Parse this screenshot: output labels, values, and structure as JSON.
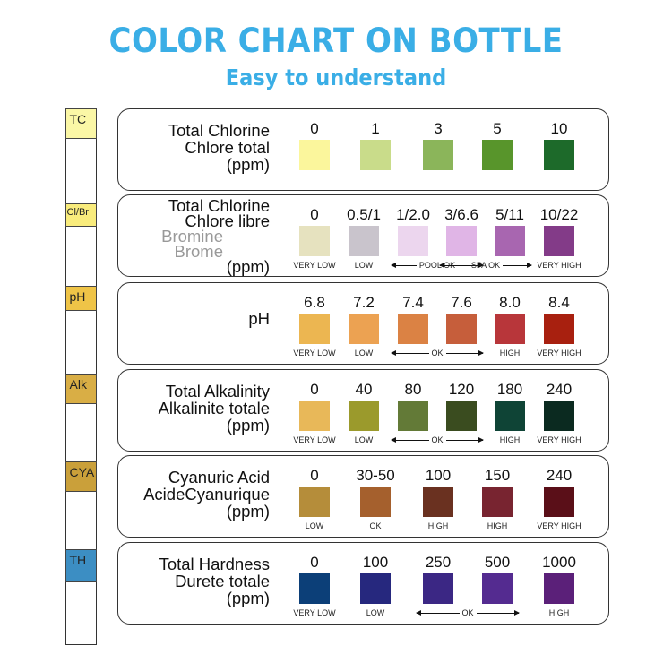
{
  "title": "COLOR CHART ON BOTTLE",
  "subtitle": "Easy to understand",
  "strip": [
    {
      "label": "TC",
      "color": "#fbf7a6"
    },
    {
      "label": "Cl/Br",
      "color": "#f9ec7c"
    },
    {
      "label": "pH",
      "color": "#efc447"
    },
    {
      "label": "Alk",
      "color": "#d9ae45"
    },
    {
      "label": "CYA",
      "color": "#caa03a"
    },
    {
      "label": "TH",
      "color": "#3c8ec3"
    }
  ],
  "rows": [
    {
      "label": [
        "Total Chlorine",
        "Chlore total",
        "(ppm)"
      ],
      "gray": [],
      "swatches": [
        {
          "value": "0",
          "color": "#fbf69c"
        },
        {
          "value": "1",
          "color": "#c9dc8a"
        },
        {
          "value": "3",
          "color": "#8bb55a"
        },
        {
          "value": "5",
          "color": "#58952b"
        },
        {
          "value": "10",
          "color": "#1d6a2a"
        }
      ],
      "spans": []
    },
    {
      "label": [
        "Total Chlorine",
        "Chlore libre",
        "Bromine",
        "Brome",
        "(ppm)"
      ],
      "gray": [
        2,
        3
      ],
      "swatches": [
        {
          "value": "0",
          "color": "#e6e2bf",
          "note": "VERY LOW"
        },
        {
          "value": "0.5/1",
          "color": "#c9c4cc",
          "note": "LOW"
        },
        {
          "value": "1/2.0",
          "color": "#ecd6ee"
        },
        {
          "value": "3/6.6",
          "color": "#e0b5e6"
        },
        {
          "value": "5/11",
          "color": "#a866b0",
          "note": ""
        },
        {
          "value": "10/22",
          "color": "#833b88",
          "note": "VERY HIGH"
        }
      ],
      "spans": [
        {
          "text": "POOL OK",
          "from": 2,
          "to": 3
        },
        {
          "text": "SPA OK",
          "from": 3,
          "to": 4
        }
      ]
    },
    {
      "label": [
        "pH"
      ],
      "gray": [],
      "swatches": [
        {
          "value": "6.8",
          "color": "#ecb651",
          "note": "VERY LOW"
        },
        {
          "value": "7.2",
          "color": "#eca252",
          "note": "LOW"
        },
        {
          "value": "7.4",
          "color": "#db8244"
        },
        {
          "value": "7.6",
          "color": "#c65e3b"
        },
        {
          "value": "8.0",
          "color": "#b8363a",
          "note": "HIGH"
        },
        {
          "value": "8.4",
          "color": "#a8200f",
          "note": "VERY HIGH"
        }
      ],
      "spans": [
        {
          "text": "OK",
          "from": 2,
          "to": 3
        }
      ]
    },
    {
      "label": [
        "Total Alkalinity",
        "Alkalinite totale",
        "(ppm)"
      ],
      "gray": [],
      "swatches": [
        {
          "value": "0",
          "color": "#e8b859",
          "note": "VERY LOW"
        },
        {
          "value": "40",
          "color": "#9b9a2c",
          "note": "LOW"
        },
        {
          "value": "80",
          "color": "#637a37"
        },
        {
          "value": "120",
          "color": "#3a4c1f"
        },
        {
          "value": "180",
          "color": "#0f4436",
          "note": "HIGH"
        },
        {
          "value": "240",
          "color": "#0b2a20",
          "note": "VERY HIGH"
        }
      ],
      "spans": [
        {
          "text": "OK",
          "from": 2,
          "to": 3
        }
      ]
    },
    {
      "label": [
        "Cyanuric Acid",
        "AcideCyanurique",
        "(ppm)"
      ],
      "gray": [],
      "swatches": [
        {
          "value": "0",
          "color": "#b58d3a",
          "note": "LOW"
        },
        {
          "value": "30-50",
          "color": "#a5602d",
          "note": "OK"
        },
        {
          "value": "100",
          "color": "#6a3120",
          "note": "HIGH"
        },
        {
          "value": "150",
          "color": "#782430",
          "note": "HIGH"
        },
        {
          "value": "240",
          "color": "#5a0f18",
          "note": "VERY HIGH"
        }
      ],
      "spans": []
    },
    {
      "label": [
        "Total Hardness",
        "Durete totale",
        "(ppm)"
      ],
      "gray": [],
      "swatches": [
        {
          "value": "0",
          "color": "#0c3f78",
          "note": "VERY LOW"
        },
        {
          "value": "100",
          "color": "#26287e",
          "note": "LOW"
        },
        {
          "value": "250",
          "color": "#3b2784"
        },
        {
          "value": "500",
          "color": "#542b90"
        },
        {
          "value": "1000",
          "color": "#5b2079",
          "note": "HIGH"
        }
      ],
      "spans": [
        {
          "text": "OK",
          "from": 2,
          "to": 3
        }
      ]
    }
  ]
}
